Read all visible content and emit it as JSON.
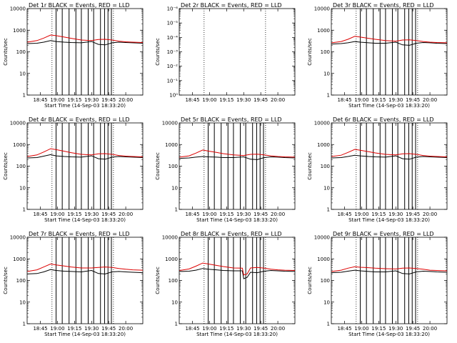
{
  "chart_data": [
    {
      "type": "line",
      "title": "Det 1r  BLACK = Events, RED = LLD",
      "ylabel": "Counts/sec",
      "xlabel": "Start Time (14-Sep-03 18:33:20)",
      "ylog": true,
      "ylim": [
        1,
        10000
      ],
      "yticks": [
        "1",
        "10",
        "100",
        "1000",
        "10000"
      ],
      "xtick_labels": [
        "18:45",
        "19:00",
        "19:15",
        "19:30",
        "19:45",
        "20:00"
      ],
      "xtick_times": [
        18.75,
        19.0,
        19.25,
        19.5,
        19.75,
        20.0
      ],
      "xlim": [
        18.556,
        20.25
      ],
      "dotted_lines": [
        18.92,
        19.82
      ],
      "gap_lines": [
        18.98,
        19.07,
        19.17,
        19.27,
        19.35,
        19.45,
        19.53,
        19.63,
        19.69,
        19.74,
        19.79
      ],
      "series": [
        {
          "name": "Events",
          "color": "#000000",
          "x": [
            18.56,
            18.7,
            18.8,
            18.9,
            18.98,
            19.1,
            19.2,
            19.35,
            19.5,
            19.6,
            19.7,
            19.8,
            19.9,
            20.0,
            20.1,
            20.25
          ],
          "y": [
            240,
            250,
            280,
            330,
            300,
            280,
            270,
            260,
            300,
            220,
            210,
            260,
            280,
            270,
            260,
            250
          ]
        },
        {
          "name": "LLD",
          "color": "#dd0000",
          "x": [
            18.56,
            18.7,
            18.8,
            18.9,
            18.98,
            19.1,
            19.2,
            19.35,
            19.5,
            19.6,
            19.7,
            19.8,
            19.9,
            20.0,
            20.1,
            20.25
          ],
          "y": [
            280,
            330,
            430,
            600,
            560,
            480,
            420,
            350,
            330,
            370,
            380,
            350,
            310,
            290,
            280,
            270
          ]
        }
      ]
    },
    {
      "type": "line",
      "title": "Det 2r  BLACK = Events, RED = LLD",
      "ylabel": "Counts/sec",
      "xlabel": "",
      "ylog": true,
      "ylim": [
        1,
        1e-06
      ],
      "yticks": [
        "10⁰",
        "10⁻¹",
        "10⁻²",
        "10⁻³",
        "10⁻⁴",
        "10⁻⁵",
        "10⁻⁶"
      ],
      "xtick_labels": [
        "18:45",
        "19:00",
        "19:15",
        "19:30",
        "19:45",
        "20:00"
      ],
      "xtick_times": [
        18.75,
        19.0,
        19.25,
        19.5,
        19.75,
        20.0
      ],
      "xlim": [
        18.556,
        20.25
      ],
      "dotted_lines": [
        18.92,
        19.82
      ],
      "gap_lines": [],
      "series": []
    },
    {
      "type": "line",
      "title": "Det 3r  BLACK = Events, RED = LLD",
      "ylabel": "Counts/sec",
      "xlabel": "Start Time (14-Sep-03 18:33:20)",
      "ylog": true,
      "ylim": [
        1,
        10000
      ],
      "yticks": [
        "1",
        "10",
        "100",
        "1000",
        "10000"
      ],
      "xtick_labels": [
        "18:45",
        "19:00",
        "19:15",
        "19:30",
        "19:45",
        "20:00"
      ],
      "xtick_times": [
        18.75,
        19.0,
        19.25,
        19.5,
        19.75,
        20.0
      ],
      "xlim": [
        18.556,
        20.25
      ],
      "dotted_lines": [
        18.92,
        19.82
      ],
      "gap_lines": [
        18.98,
        19.07,
        19.17,
        19.27,
        19.35,
        19.45,
        19.53,
        19.63,
        19.69,
        19.74,
        19.79
      ],
      "series": [
        {
          "name": "Events",
          "color": "#000000",
          "x": [
            18.56,
            18.7,
            18.8,
            18.9,
            18.98,
            19.1,
            19.2,
            19.35,
            19.5,
            19.6,
            19.7,
            19.8,
            19.9,
            20.0,
            20.1,
            20.25
          ],
          "y": [
            230,
            240,
            260,
            300,
            280,
            260,
            250,
            250,
            280,
            210,
            200,
            250,
            270,
            260,
            250,
            240
          ]
        },
        {
          "name": "LLD",
          "color": "#dd0000",
          "x": [
            18.56,
            18.7,
            18.8,
            18.9,
            18.98,
            19.1,
            19.2,
            19.35,
            19.5,
            19.6,
            19.7,
            19.8,
            19.9,
            20.0,
            20.1,
            20.25
          ],
          "y": [
            260,
            300,
            380,
            520,
            480,
            420,
            380,
            330,
            310,
            350,
            360,
            330,
            300,
            280,
            270,
            260
          ]
        }
      ]
    },
    {
      "type": "line",
      "title": "Det 4r  BLACK = Events, RED = LLD",
      "ylabel": "Counts/sec",
      "xlabel": "Start Time (14-Sep-03 18:33:20)",
      "ylog": true,
      "ylim": [
        1,
        10000
      ],
      "yticks": [
        "1",
        "10",
        "100",
        "1000",
        "10000"
      ],
      "xtick_labels": [
        "18:45",
        "19:00",
        "19:15",
        "19:30",
        "19:45",
        "20:00"
      ],
      "xtick_times": [
        18.75,
        19.0,
        19.25,
        19.5,
        19.75,
        20.0
      ],
      "xlim": [
        18.556,
        20.25
      ],
      "dotted_lines": [
        18.92,
        19.82
      ],
      "gap_lines": [
        18.98,
        19.07,
        19.17,
        19.27,
        19.35,
        19.45,
        19.53,
        19.63,
        19.69,
        19.74,
        19.79
      ],
      "series": [
        {
          "name": "Events",
          "color": "#000000",
          "x": [
            18.56,
            18.7,
            18.8,
            18.9,
            18.98,
            19.1,
            19.2,
            19.35,
            19.5,
            19.6,
            19.7,
            19.8,
            19.9,
            20.0,
            20.1,
            20.25
          ],
          "y": [
            240,
            250,
            290,
            340,
            300,
            280,
            270,
            260,
            300,
            220,
            210,
            260,
            280,
            270,
            260,
            250
          ]
        },
        {
          "name": "LLD",
          "color": "#dd0000",
          "x": [
            18.56,
            18.7,
            18.8,
            18.9,
            18.98,
            19.1,
            19.2,
            19.35,
            19.5,
            19.6,
            19.7,
            19.8,
            19.9,
            20.0,
            20.1,
            20.25
          ],
          "y": [
            280,
            330,
            450,
            640,
            580,
            490,
            420,
            350,
            330,
            370,
            380,
            350,
            310,
            290,
            280,
            270
          ]
        }
      ]
    },
    {
      "type": "line",
      "title": "Det 5r  BLACK = Events, RED = LLD",
      "ylabel": "Counts/sec",
      "xlabel": "Start Time (14-Sep-03 18:33:20)",
      "ylog": true,
      "ylim": [
        1,
        10000
      ],
      "yticks": [
        "1",
        "10",
        "100",
        "1000",
        "10000"
      ],
      "xtick_labels": [
        "18:45",
        "19:00",
        "19:15",
        "19:30",
        "19:45",
        "20:00"
      ],
      "xtick_times": [
        18.75,
        19.0,
        19.25,
        19.5,
        19.75,
        20.0
      ],
      "xlim": [
        18.556,
        20.25
      ],
      "dotted_lines": [
        18.92,
        19.82
      ],
      "gap_lines": [
        18.98,
        19.07,
        19.17,
        19.27,
        19.35,
        19.45,
        19.53,
        19.63,
        19.69,
        19.74,
        19.79
      ],
      "series": [
        {
          "name": "Events",
          "color": "#000000",
          "x": [
            18.56,
            18.7,
            18.8,
            18.9,
            18.98,
            19.1,
            19.2,
            19.35,
            19.5,
            19.6,
            19.7,
            19.8,
            19.9,
            20.0,
            20.1,
            20.25
          ],
          "y": [
            230,
            240,
            260,
            280,
            270,
            260,
            250,
            250,
            270,
            210,
            200,
            250,
            270,
            260,
            250,
            240
          ]
        },
        {
          "name": "LLD",
          "color": "#dd0000",
          "x": [
            18.56,
            18.7,
            18.8,
            18.9,
            18.98,
            19.1,
            19.2,
            19.35,
            19.5,
            19.6,
            19.7,
            19.8,
            19.9,
            20.0,
            20.1,
            20.25
          ],
          "y": [
            260,
            300,
            400,
            560,
            500,
            430,
            380,
            330,
            310,
            350,
            360,
            330,
            300,
            280,
            270,
            260
          ]
        }
      ]
    },
    {
      "type": "line",
      "title": "Det 6r  BLACK = Events, RED = LLD",
      "ylabel": "Counts/sec",
      "xlabel": "Start Time (14-Sep-03 18:33:20)",
      "ylog": true,
      "ylim": [
        1,
        10000
      ],
      "yticks": [
        "1",
        "10",
        "100",
        "1000",
        "10000"
      ],
      "xtick_labels": [
        "18:45",
        "19:00",
        "19:15",
        "19:30",
        "19:45",
        "20:00"
      ],
      "xtick_times": [
        18.75,
        19.0,
        19.25,
        19.5,
        19.75,
        20.0
      ],
      "xlim": [
        18.556,
        20.25
      ],
      "dotted_lines": [
        18.92,
        19.82
      ],
      "gap_lines": [
        18.98,
        19.07,
        19.17,
        19.27,
        19.35,
        19.45,
        19.53,
        19.63,
        19.69,
        19.74,
        19.79
      ],
      "series": [
        {
          "name": "Events",
          "color": "#000000",
          "x": [
            18.56,
            18.7,
            18.8,
            18.9,
            18.98,
            19.1,
            19.2,
            19.35,
            19.5,
            19.6,
            19.7,
            19.8,
            19.9,
            20.0,
            20.1,
            20.25
          ],
          "y": [
            240,
            250,
            280,
            320,
            300,
            280,
            270,
            260,
            300,
            220,
            210,
            260,
            280,
            270,
            260,
            250
          ]
        },
        {
          "name": "LLD",
          "color": "#dd0000",
          "x": [
            18.56,
            18.7,
            18.8,
            18.9,
            18.98,
            19.1,
            19.2,
            19.35,
            19.5,
            19.6,
            19.7,
            19.8,
            19.9,
            20.0,
            20.1,
            20.25
          ],
          "y": [
            280,
            320,
            430,
            600,
            540,
            470,
            410,
            350,
            330,
            370,
            380,
            350,
            310,
            290,
            280,
            270
          ]
        }
      ]
    },
    {
      "type": "line",
      "title": "Det 7r  BLACK = Events, RED = LLD",
      "ylabel": "Counts/sec",
      "xlabel": "Start Time (14-Sep-03 18:33:20)",
      "ylog": true,
      "ylim": [
        1,
        10000
      ],
      "yticks": [
        "1",
        "10",
        "100",
        "1000",
        "10000"
      ],
      "xtick_labels": [
        "18:45",
        "19:00",
        "19:15",
        "19:30",
        "19:45",
        "20:00"
      ],
      "xtick_times": [
        18.75,
        19.0,
        19.25,
        19.5,
        19.75,
        20.0
      ],
      "xlim": [
        18.556,
        20.25
      ],
      "dotted_lines": [
        18.92,
        19.82
      ],
      "gap_lines": [
        18.98,
        19.07,
        19.17,
        19.27,
        19.35,
        19.45,
        19.53,
        19.63,
        19.69,
        19.74,
        19.79
      ],
      "series": [
        {
          "name": "Events",
          "color": "#000000",
          "x": [
            18.56,
            18.7,
            18.8,
            18.9,
            18.98,
            19.1,
            19.2,
            19.35,
            19.5,
            19.6,
            19.7,
            19.8,
            19.9,
            20.0,
            20.1,
            20.25
          ],
          "y": [
            200,
            210,
            250,
            320,
            290,
            270,
            260,
            250,
            290,
            210,
            200,
            250,
            260,
            250,
            240,
            230
          ]
        },
        {
          "name": "LLD",
          "color": "#dd0000",
          "x": [
            18.56,
            18.7,
            18.8,
            18.9,
            18.98,
            19.1,
            19.2,
            19.35,
            19.5,
            19.6,
            19.7,
            19.8,
            19.9,
            20.0,
            20.1,
            20.25
          ],
          "y": [
            260,
            310,
            420,
            580,
            520,
            470,
            420,
            380,
            380,
            400,
            420,
            400,
            360,
            330,
            310,
            300
          ]
        }
      ]
    },
    {
      "type": "line",
      "title": "Det 8r  BLACK = Events, RED = LLD",
      "ylabel": "Counts/sec",
      "xlabel": "Start Time (14-Sep-03 18:33:20)",
      "ylog": true,
      "ylim": [
        1,
        10000
      ],
      "yticks": [
        "1",
        "10",
        "100",
        "1000",
        "10000"
      ],
      "xtick_labels": [
        "18:45",
        "19:00",
        "19:15",
        "19:30",
        "19:45",
        "20:00"
      ],
      "xtick_times": [
        18.75,
        19.0,
        19.25,
        19.5,
        19.75,
        20.0
      ],
      "xlim": [
        18.556,
        20.25
      ],
      "dotted_lines": [
        18.92,
        19.82
      ],
      "gap_lines": [
        18.98,
        19.07,
        19.17,
        19.27,
        19.35,
        19.45,
        19.53,
        19.63,
        19.69,
        19.74,
        19.79
      ],
      "series": [
        {
          "name": "Events",
          "color": "#000000",
          "x": [
            18.56,
            18.7,
            18.8,
            18.9,
            18.98,
            19.1,
            19.2,
            19.35,
            19.48,
            19.5,
            19.55,
            19.6,
            19.7,
            19.8,
            19.9,
            20.0,
            20.1,
            20.25
          ],
          "y": [
            260,
            270,
            300,
            360,
            330,
            310,
            290,
            280,
            280,
            120,
            140,
            240,
            230,
            270,
            290,
            280,
            270,
            260
          ]
        },
        {
          "name": "LLD",
          "color": "#dd0000",
          "x": [
            18.56,
            18.7,
            18.8,
            18.9,
            18.98,
            19.1,
            19.2,
            19.35,
            19.48,
            19.5,
            19.55,
            19.6,
            19.7,
            19.8,
            19.9,
            20.0,
            20.1,
            20.25
          ],
          "y": [
            290,
            340,
            460,
            640,
            580,
            500,
            440,
            380,
            370,
            180,
            200,
            380,
            400,
            370,
            330,
            310,
            300,
            290
          ]
        }
      ]
    },
    {
      "type": "line",
      "title": "Det 9r  BLACK = Events, RED = LLD",
      "ylabel": "Counts/sec",
      "xlabel": "Start Time (14-Sep-03 18:33:20)",
      "ylog": true,
      "ylim": [
        1,
        10000
      ],
      "yticks": [
        "1",
        "10",
        "100",
        "1000",
        "10000"
      ],
      "xtick_labels": [
        "18:45",
        "19:00",
        "19:15",
        "19:30",
        "19:45",
        "20:00"
      ],
      "xtick_times": [
        18.75,
        19.0,
        19.25,
        19.5,
        19.75,
        20.0
      ],
      "xlim": [
        18.556,
        20.25
      ],
      "dotted_lines": [
        18.92,
        19.82
      ],
      "gap_lines": [
        18.98,
        19.07,
        19.17,
        19.27,
        19.35,
        19.45,
        19.53,
        19.63,
        19.69,
        19.74,
        19.79
      ],
      "series": [
        {
          "name": "Events",
          "color": "#000000",
          "x": [
            18.56,
            18.7,
            18.8,
            18.9,
            18.98,
            19.1,
            19.2,
            19.35,
            19.5,
            19.6,
            19.7,
            19.8,
            19.9,
            20.0,
            20.1,
            20.25
          ],
          "y": [
            230,
            240,
            270,
            300,
            280,
            260,
            250,
            250,
            280,
            210,
            200,
            250,
            270,
            260,
            250,
            240
          ]
        },
        {
          "name": "LLD",
          "color": "#dd0000",
          "x": [
            18.56,
            18.7,
            18.8,
            18.9,
            18.98,
            19.1,
            19.2,
            19.35,
            19.5,
            19.6,
            19.7,
            19.8,
            19.9,
            20.0,
            20.1,
            20.25
          ],
          "y": [
            260,
            300,
            370,
            430,
            410,
            390,
            370,
            350,
            340,
            370,
            380,
            360,
            330,
            300,
            290,
            280
          ]
        }
      ]
    }
  ]
}
